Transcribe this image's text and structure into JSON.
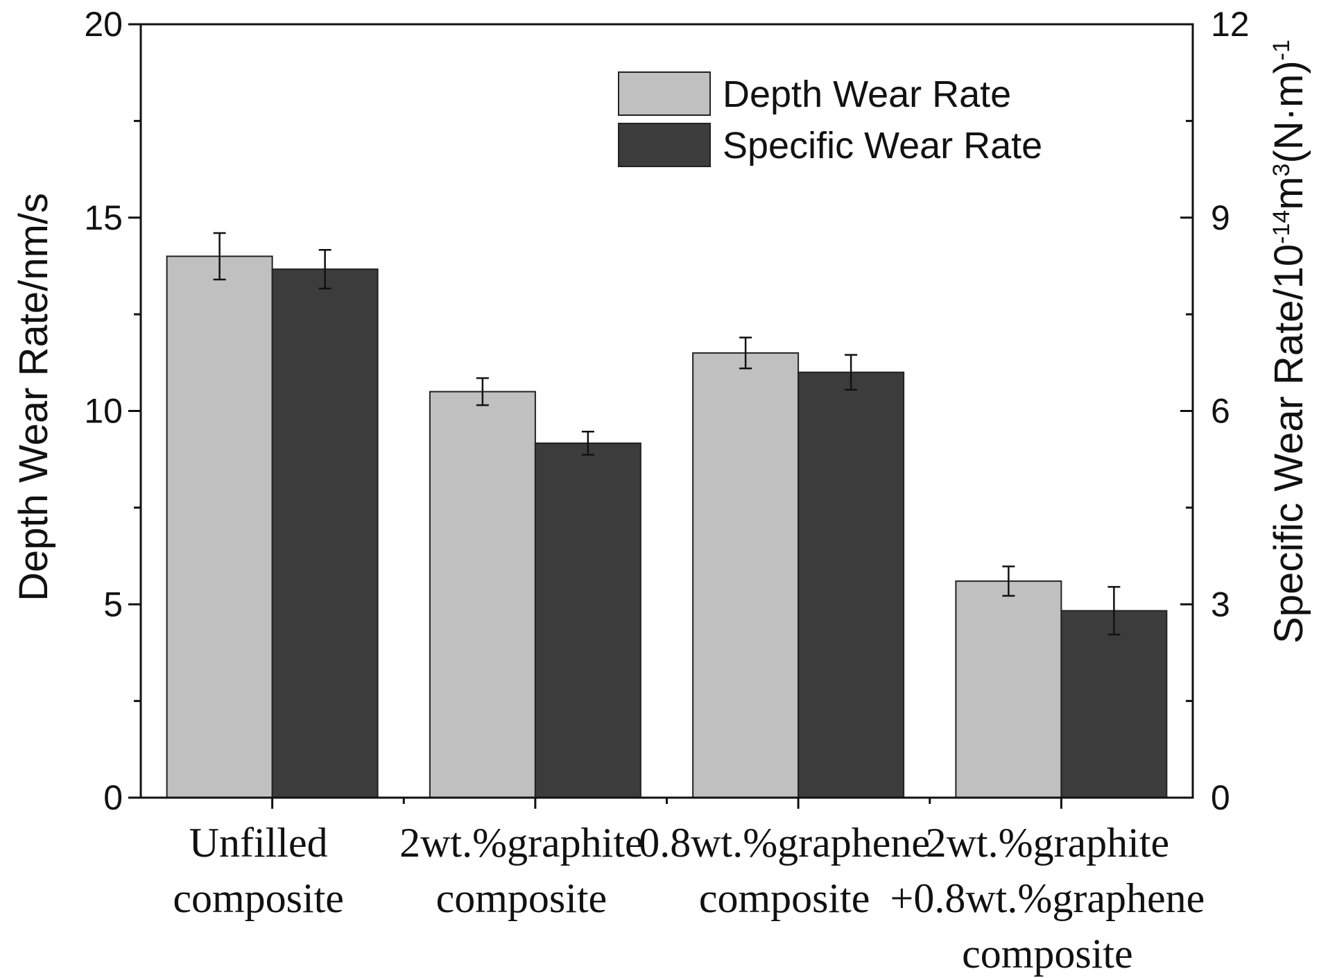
{
  "chart_data": {
    "type": "bar",
    "categories": [
      [
        "Unfilled",
        "composite"
      ],
      [
        "2wt.%graphite",
        "composite"
      ],
      [
        "0.8wt.%graphene",
        "composite"
      ],
      [
        "2wt.%graphite",
        "+0.8wt.%graphene",
        "composite"
      ]
    ],
    "series": [
      {
        "name": "Depth Wear Rate",
        "axis": "left",
        "color": "#c0c0c0",
        "values": [
          14.0,
          10.5,
          11.5,
          5.6
        ],
        "errors": [
          0.6,
          0.35,
          0.4,
          0.38
        ]
      },
      {
        "name": "Specific Wear Rate",
        "axis": "right",
        "color": "#3c3c3c",
        "values": [
          8.2,
          5.5,
          6.6,
          2.9
        ],
        "errors": [
          0.3,
          0.18,
          0.27,
          0.37
        ]
      }
    ],
    "ylabel_left": "Depth Wear Rate/nm/s",
    "ylabel_right": {
      "base": "Specific Wear Rate/10",
      "exp1": "-14",
      "mid": "m",
      "exp2": "3",
      "paren": "(N·m)",
      "exp3": "-1"
    },
    "ylim_left": [
      0,
      20
    ],
    "ylim_right": [
      0,
      12
    ],
    "yticks_left": [
      "0",
      "5",
      "10",
      "15",
      "20"
    ],
    "yticks_right": [
      "0",
      "3",
      "6",
      "9",
      "12"
    ],
    "legend_position": "top-right"
  }
}
